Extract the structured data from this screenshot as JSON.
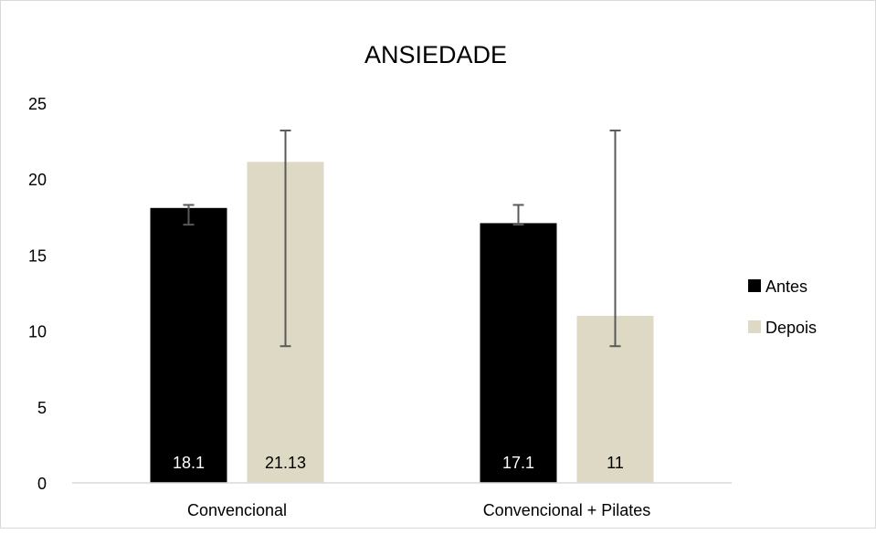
{
  "chart_data": {
    "type": "bar",
    "title": "ANSIEDADE",
    "categories": [
      "Convencional",
      "Convencional + Pilates"
    ],
    "series": [
      {
        "name": "Antes",
        "values": [
          18.1,
          17.1
        ],
        "data_labels": [
          "18.1",
          "17.1"
        ],
        "error_low": [
          17.0,
          17.0
        ],
        "error_high": [
          18.3,
          18.3
        ],
        "color": "#000000",
        "label_color": "#ffffff"
      },
      {
        "name": "Depois",
        "values": [
          21.13,
          11
        ],
        "data_labels": [
          "21.13",
          "11"
        ],
        "error_low": [
          9.0,
          9.0
        ],
        "error_high": [
          23.2,
          23.2
        ],
        "color": "#ddd9c4",
        "label_color": "#000000"
      }
    ],
    "y_ticks": [
      "0",
      "5",
      "10",
      "15",
      "20",
      "25"
    ],
    "ylim": [
      0,
      25
    ],
    "grid": false,
    "legend_position": "right",
    "error_bar_color": "#595959",
    "axis_color": "#d9d9d9"
  }
}
